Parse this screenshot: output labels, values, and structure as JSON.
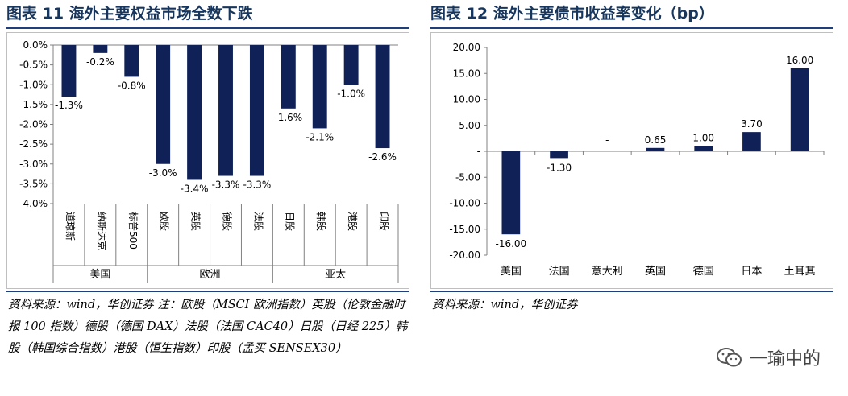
{
  "left": {
    "title": "图表 11   海外主要权益市场全数下跌",
    "source": "资料来源：wind，华创证券    注：欧股（MSCI 欧洲指数）英股（伦敦金融时报 100 指数）德股（德国 DAX）法股（法国 CAC40）日股（日经 225）韩股（韩国综合指数）港股（恒生指数）印股（孟买 SENSEX30）"
  },
  "right": {
    "title": "图表 12   海外主要债市收益率变化（bp）",
    "source": "资料来源：wind，华创证券"
  },
  "watermark": {
    "text": "一瑜中的",
    "icon": "wechat-icon"
  },
  "colors": {
    "bar": "#0f2156",
    "title": "#17365d",
    "rule": "#1f3f7a"
  },
  "chart_data": [
    {
      "type": "bar",
      "categories": [
        "道琼斯",
        "纳斯达克",
        "标普500",
        "欧股",
        "英股",
        "德股",
        "法股",
        "日股",
        "韩股",
        "港股",
        "印股"
      ],
      "groups": [
        {
          "label": "美国",
          "count": 3
        },
        {
          "label": "欧洲",
          "count": 4
        },
        {
          "label": "亚太",
          "count": 4
        }
      ],
      "values": [
        -1.3,
        -0.2,
        -0.8,
        -3.0,
        -3.4,
        -3.3,
        -3.3,
        -1.6,
        -2.1,
        -1.0,
        -2.6
      ],
      "data_labels": [
        "-1.3%",
        "-0.2%",
        "-0.8%",
        "-3.0%",
        "-3.4%",
        "-3.3%",
        "-3.3%",
        "-1.6%",
        "-2.1%",
        "-1.0%",
        "-2.6%"
      ],
      "yticks": [
        "0.0%",
        "-0.5%",
        "-1.0%",
        "-1.5%",
        "-2.0%",
        "-2.5%",
        "-3.0%",
        "-3.5%",
        "-4.0%"
      ],
      "ylim": [
        -4.0,
        0.0
      ],
      "grid": false,
      "legend": "none"
    },
    {
      "type": "bar",
      "categories": [
        "美国",
        "法国",
        "意大利",
        "英国",
        "德国",
        "日本",
        "土耳其"
      ],
      "values": [
        -16.0,
        -1.3,
        0,
        0.65,
        1.0,
        3.7,
        16.0
      ],
      "data_labels": [
        "-16.00",
        "-1.30",
        "-",
        "0.65",
        "1.00",
        "3.70",
        "16.00"
      ],
      "yticks": [
        "20.00",
        "15.00",
        "10.00",
        "5.00",
        "-",
        "-5.00",
        "-10.00",
        "-15.00",
        "-20.00"
      ],
      "ylim": [
        -20.0,
        20.0
      ],
      "grid": false,
      "legend": "none"
    }
  ]
}
